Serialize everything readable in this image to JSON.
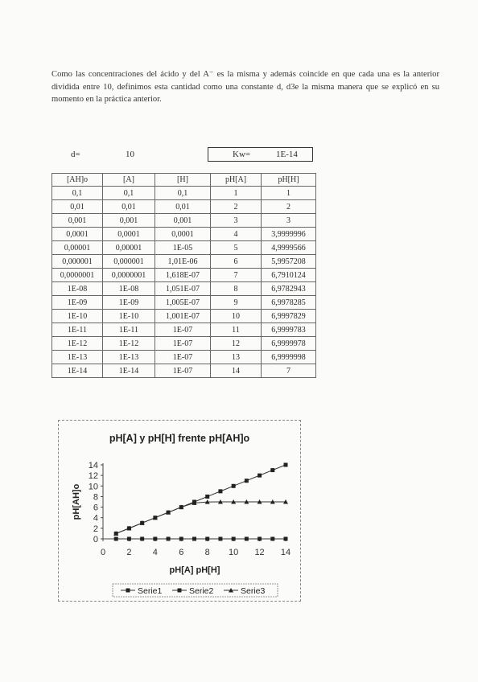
{
  "paragraph": "Como las concentraciones del ácido y del A⁻ es la misma y además coincide en que cada una es la anterior dividida entre 10, definimos esta cantidad como una constante d, d3e la misma manera que se explicó en su momento en la práctica anterior.",
  "constants": {
    "d_label": "d=",
    "d_value": "10",
    "kw_label": "Kw=",
    "kw_value": "1E-14"
  },
  "table": {
    "headers": [
      "[AH]o",
      "[A]",
      "[H]",
      "pH[A]",
      "pH[H]"
    ],
    "rows": [
      [
        "0,1",
        "0,1",
        "0,1",
        "1",
        "1"
      ],
      [
        "0,01",
        "0,01",
        "0,01",
        "2",
        "2"
      ],
      [
        "0,001",
        "0,001",
        "0,001",
        "3",
        "3"
      ],
      [
        "0,0001",
        "0,0001",
        "0,0001",
        "4",
        "3,9999996"
      ],
      [
        "0,00001",
        "0,00001",
        "1E-05",
        "5",
        "4,9999566"
      ],
      [
        "0,000001",
        "0,000001",
        "1,01E-06",
        "6",
        "5,9957208"
      ],
      [
        "0,0000001",
        "0,0000001",
        "1,618E-07",
        "7",
        "6,7910124"
      ],
      [
        "1E-08",
        "1E-08",
        "1,051E-07",
        "8",
        "6,9782943"
      ],
      [
        "1E-09",
        "1E-09",
        "1,005E-07",
        "9",
        "6,9978285"
      ],
      [
        "1E-10",
        "1E-10",
        "1,001E-07",
        "10",
        "6,9997829"
      ],
      [
        "1E-11",
        "1E-11",
        "1E-07",
        "11",
        "6,9999783"
      ],
      [
        "1E-12",
        "1E-12",
        "1E-07",
        "12",
        "6,9999978"
      ],
      [
        "1E-13",
        "1E-13",
        "1E-07",
        "13",
        "6,9999998"
      ],
      [
        "1E-14",
        "1E-14",
        "1E-07",
        "14",
        "7"
      ]
    ]
  },
  "chart_data": {
    "type": "line",
    "title": "pH[A] y pH[H] frente pH[AH]o",
    "xlabel": "pH[A] pH[H]",
    "ylabel": "pH[AH]o",
    "xlim": [
      0,
      14
    ],
    "ylim": [
      0,
      14
    ],
    "xticks": [
      "0",
      "2",
      "4",
      "6",
      "8",
      "10",
      "12",
      "14"
    ],
    "yticks": [
      "0",
      "2",
      "4",
      "6",
      "8",
      "10",
      "12",
      "14"
    ],
    "x": [
      1,
      2,
      3,
      4,
      5,
      6,
      7,
      8,
      9,
      10,
      11,
      12,
      13,
      14
    ],
    "series": [
      {
        "name": "Serie1",
        "marker": "square",
        "values": [
          1,
          2,
          3,
          4,
          5,
          6,
          7,
          8,
          9,
          10,
          11,
          12,
          13,
          14
        ]
      },
      {
        "name": "Serie2",
        "marker": "square",
        "values": [
          0,
          0,
          0,
          0,
          0,
          0,
          0,
          0,
          0,
          0,
          0,
          0,
          0,
          0
        ]
      },
      {
        "name": "Serie3",
        "marker": "triangle",
        "values": [
          1,
          2,
          3,
          4,
          5,
          6,
          6.79,
          6.98,
          7.0,
          7.0,
          7.0,
          7.0,
          7.0,
          7.0
        ]
      }
    ],
    "grid": false,
    "legend": "bottom"
  }
}
